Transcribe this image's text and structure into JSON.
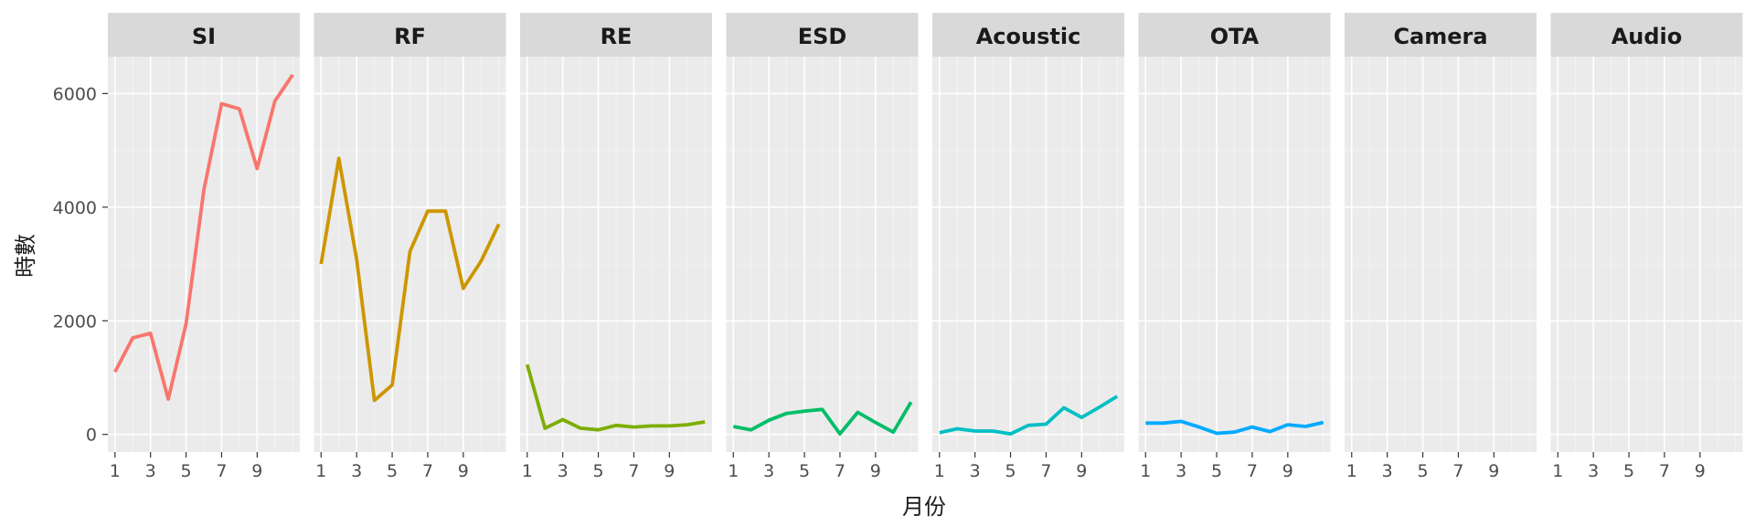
{
  "chart_data": {
    "type": "line",
    "xlabel": "月份",
    "ylabel": "時數",
    "x": [
      1,
      2,
      3,
      4,
      5,
      6,
      7,
      8,
      9,
      10,
      11
    ],
    "x_ticks": [
      1,
      3,
      5,
      7,
      9
    ],
    "y_ticks": [
      0,
      2000,
      4000,
      6000
    ],
    "xlim": [
      0.6,
      11.4
    ],
    "ylim": [
      -310,
      6650
    ],
    "grid": true,
    "legend": "none",
    "facets": [
      {
        "name": "SI",
        "color": "#F8766D",
        "values": [
          1100,
          1700,
          1780,
          620,
          1950,
          4300,
          5820,
          5730,
          4680,
          5870,
          6330
        ]
      },
      {
        "name": "RF",
        "color": "#CD9600",
        "values": [
          3000,
          4860,
          3080,
          600,
          870,
          3220,
          3930,
          3930,
          2570,
          3050,
          3700
        ]
      },
      {
        "name": "RE",
        "color": "#7CAE00",
        "values": [
          1230,
          110,
          260,
          110,
          80,
          160,
          130,
          150,
          150,
          170,
          220
        ]
      },
      {
        "name": "ESD",
        "color": "#00BE67",
        "values": [
          140,
          80,
          250,
          370,
          410,
          440,
          10,
          390,
          210,
          40,
          570
        ]
      },
      {
        "name": "Acoustic",
        "color": "#00BFC4",
        "values": [
          30,
          100,
          60,
          60,
          10,
          160,
          180,
          470,
          300,
          480,
          670
        ]
      },
      {
        "name": "OTA",
        "color": "#00A9FF",
        "values": [
          200,
          200,
          230,
          130,
          20,
          40,
          130,
          50,
          170,
          140,
          210
        ]
      },
      {
        "name": "Camera",
        "color": "#C77CFF",
        "values": []
      },
      {
        "name": "Audio",
        "color": "#FF61CC",
        "values": []
      }
    ]
  }
}
